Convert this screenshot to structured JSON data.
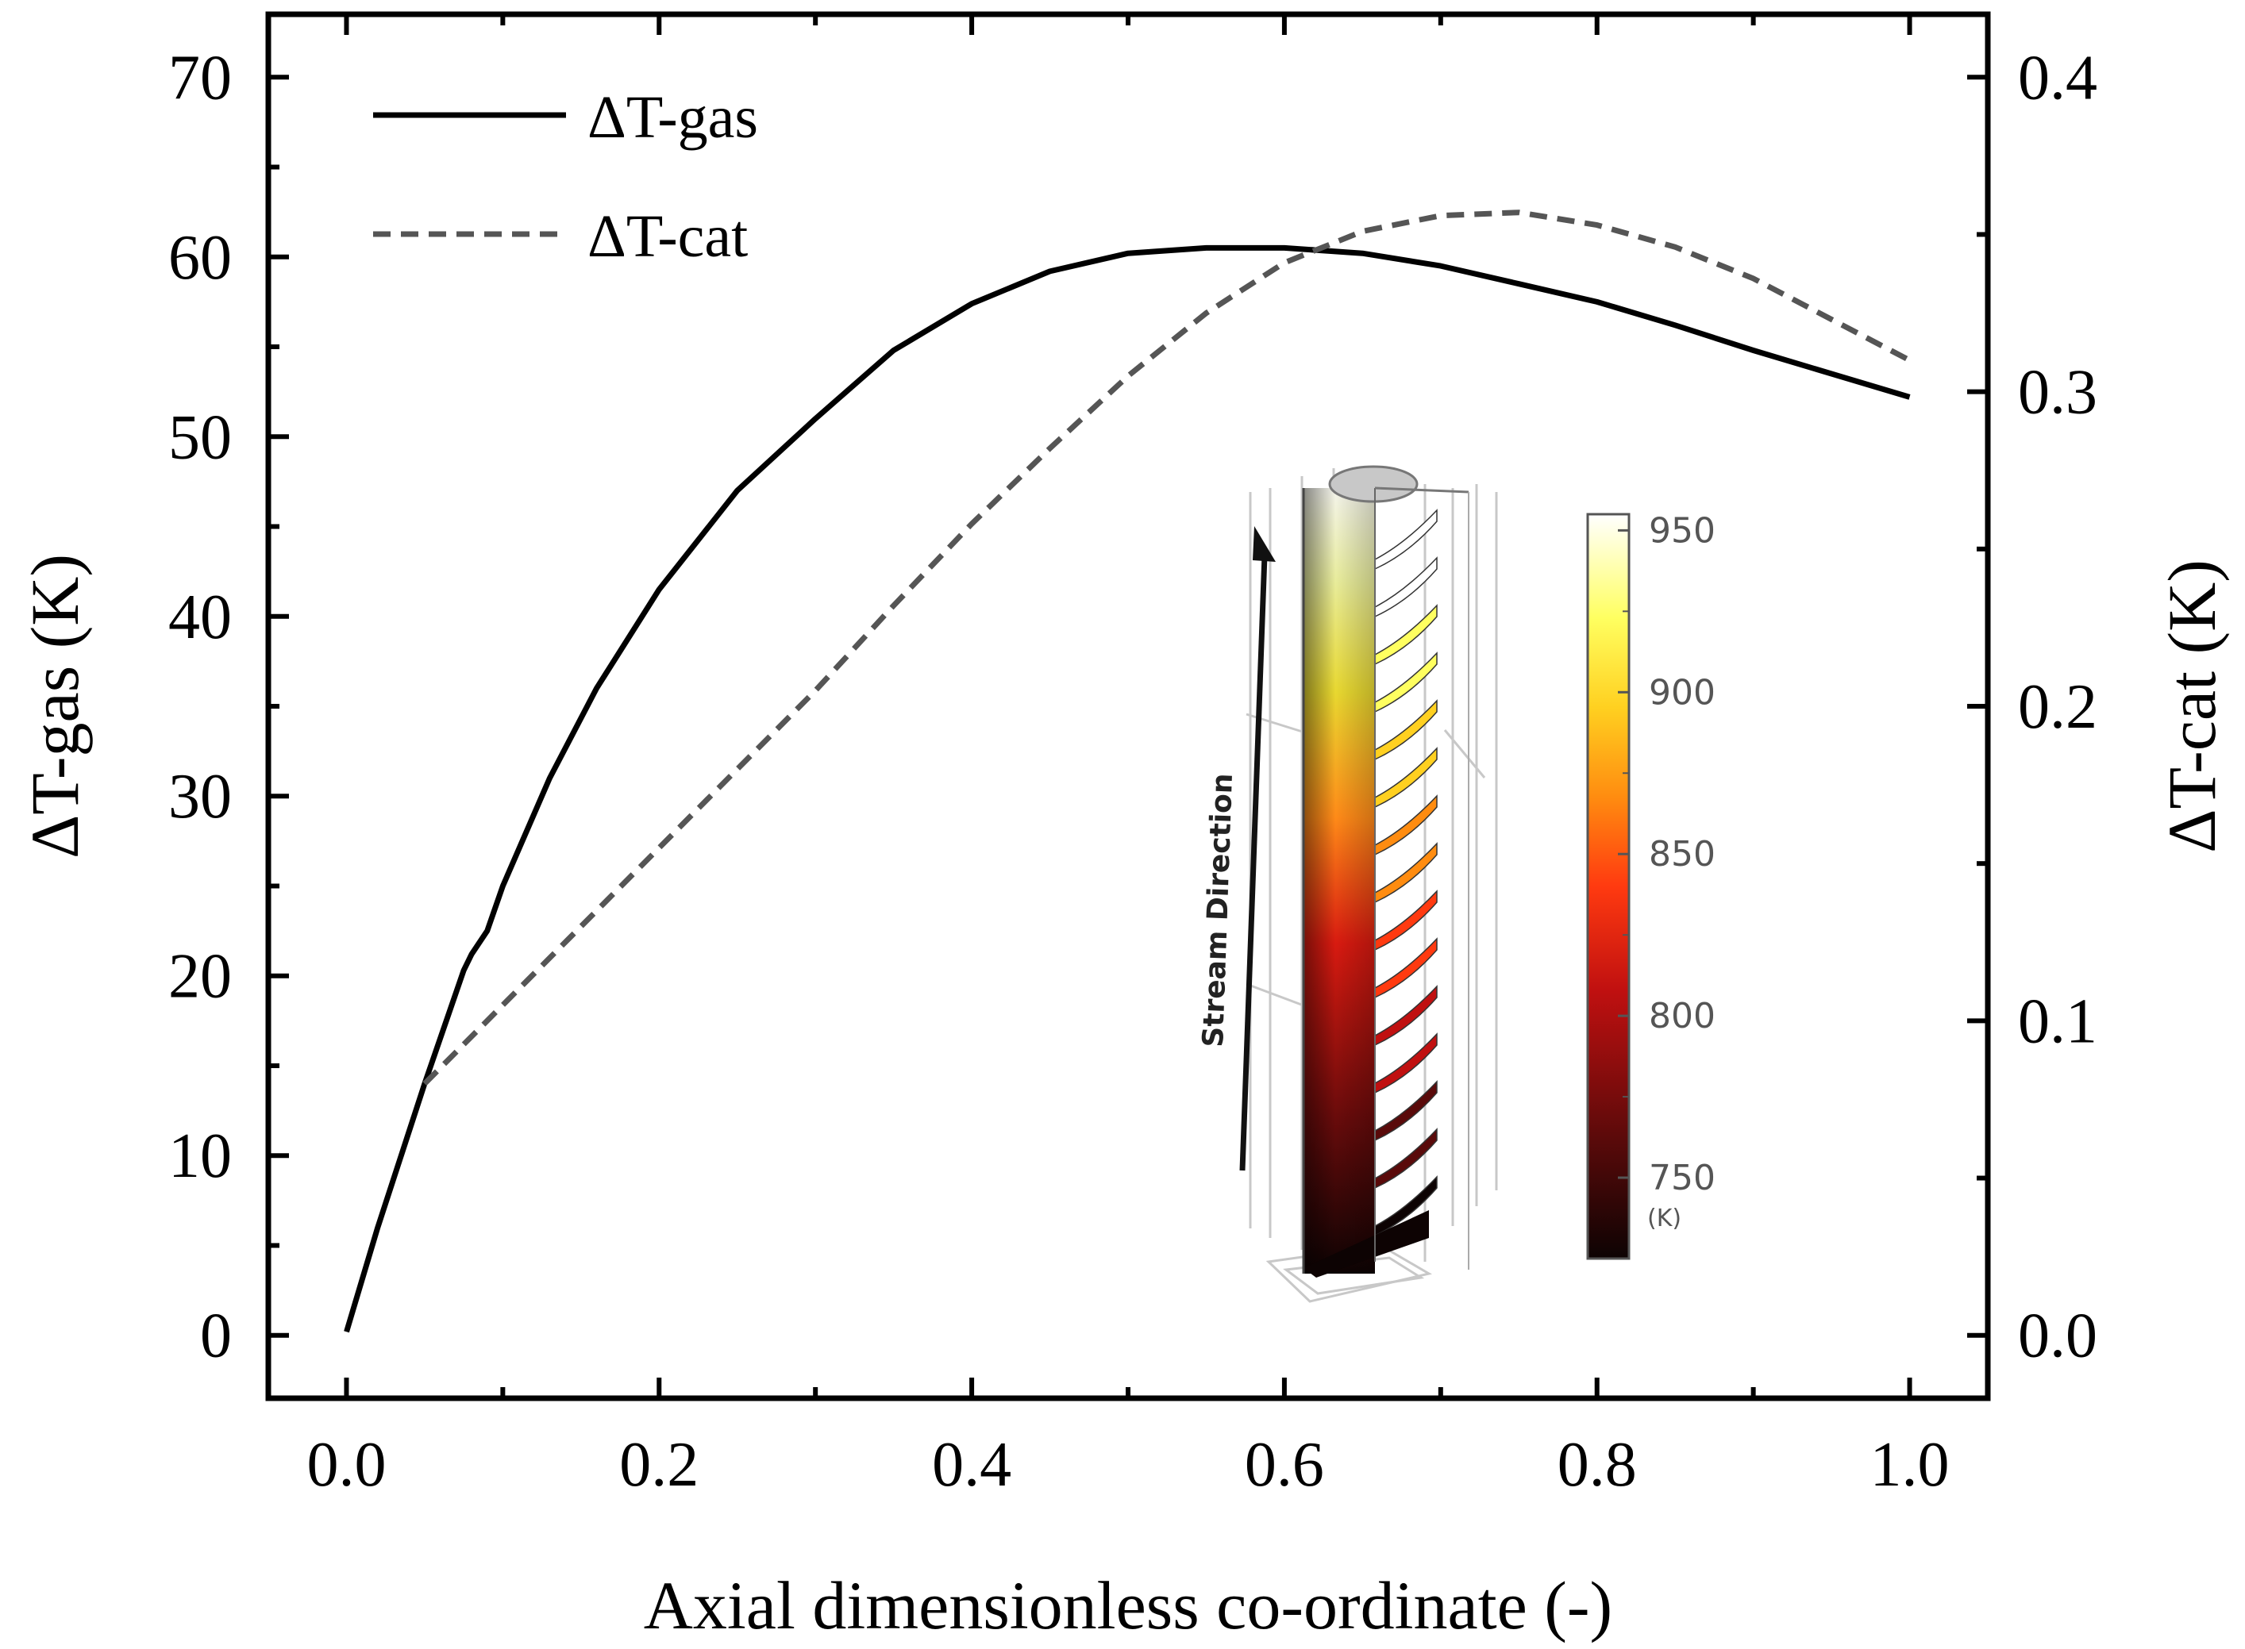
{
  "chart_data": {
    "type": "line",
    "title": "",
    "xlabel": "Axial dimensionless co-ordinate (-)",
    "ylabel_left": "ΔT-gas (K)",
    "ylabel_right": "ΔT-cat (K)",
    "xlim": [
      -0.05,
      1.05
    ],
    "ylim_left": [
      -3.5,
      73.5
    ],
    "ylim_right": [
      -0.02,
      0.42
    ],
    "x_ticks": [
      "0.0",
      "0.2",
      "0.4",
      "0.6",
      "0.8",
      "1.0"
    ],
    "y_left_ticks": [
      "0",
      "10",
      "20",
      "30",
      "40",
      "50",
      "60",
      "70"
    ],
    "y_right_ticks": [
      "0.0",
      "0.1",
      "0.2",
      "0.3",
      "0.4"
    ],
    "grid": false,
    "legend_position": "top-left",
    "series": [
      {
        "name": "ΔT-gas",
        "axis": "left",
        "style": "solid",
        "color": "#000000",
        "x": [
          0.0,
          0.02,
          0.05,
          0.075,
          0.08,
          0.09,
          0.1,
          0.13,
          0.16,
          0.2,
          0.25,
          0.3,
          0.35,
          0.4,
          0.45,
          0.5,
          0.55,
          0.6,
          0.65,
          0.7,
          0.75,
          0.8,
          0.85,
          0.9,
          0.95,
          1.0
        ],
        "y": [
          0.2,
          6,
          14,
          20.3,
          21.2,
          22.5,
          25,
          31,
          36,
          41.5,
          47,
          51,
          54.8,
          57.4,
          59.2,
          60.2,
          60.5,
          60.5,
          60.2,
          59.5,
          58.5,
          57.5,
          56.2,
          54.8,
          53.5,
          52.2
        ]
      },
      {
        "name": "ΔT-cat",
        "axis": "right",
        "style": "dashed",
        "color": "#555555",
        "x": [
          0.05,
          0.1,
          0.15,
          0.2,
          0.25,
          0.3,
          0.35,
          0.4,
          0.45,
          0.5,
          0.55,
          0.6,
          0.65,
          0.7,
          0.75,
          0.8,
          0.85,
          0.9,
          0.95,
          1.0
        ],
        "y": [
          0.08,
          0.105,
          0.13,
          0.155,
          0.18,
          0.205,
          0.232,
          0.258,
          0.282,
          0.305,
          0.325,
          0.341,
          0.351,
          0.356,
          0.357,
          0.353,
          0.346,
          0.336,
          0.323,
          0.31
        ]
      }
    ]
  },
  "inset": {
    "arrow_label": "Stream Direction",
    "colorbar_ticks": [
      "950",
      "900",
      "850",
      "800",
      "750"
    ],
    "colorbar_values": [
      950,
      900,
      850,
      800,
      750
    ],
    "colorbar_range": [
      725,
      955
    ],
    "colorbar_unit": "(K)",
    "colormap": [
      "#0d0303",
      "#5a0a0a",
      "#c01010",
      "#ff3a10",
      "#ff8c10",
      "#ffd020",
      "#ffff60",
      "#ffffff"
    ]
  }
}
